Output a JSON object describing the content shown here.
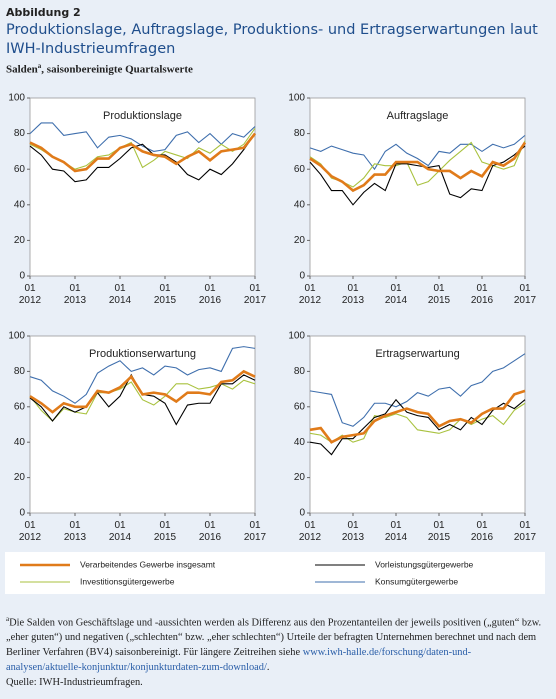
{
  "header": {
    "figure": "Abbildung 2",
    "title": "Produktionslage, Auftragslage, Produktions- und Ertragserwartungen laut IWH-Industrieumfragen",
    "subtitle_parts": [
      "Salden",
      "a",
      ", saisonbereinigte Quartalswerte"
    ]
  },
  "chart_data": [
    {
      "type": "line",
      "title": "Produktionslage",
      "categories": [
        "01 2012",
        null,
        null,
        null,
        "01 2013",
        null,
        null,
        null,
        "01 2014",
        null,
        null,
        null,
        "01 2015",
        null,
        null,
        null,
        "01 2016",
        null,
        null,
        null,
        "01 2017"
      ],
      "ylim": [
        0,
        100
      ],
      "yticks": [
        0,
        20,
        40,
        60,
        80,
        100
      ],
      "series": [
        {
          "name": "Verarbeitendes Gewerbe insgesamt",
          "color": "#e07b1a",
          "values": [
            75,
            72,
            67,
            64,
            59,
            60,
            66,
            66,
            72,
            74,
            70,
            68,
            67,
            63,
            67,
            70,
            65,
            70,
            71,
            72,
            80
          ]
        },
        {
          "name": "Vorleistungsgütergewerbe",
          "color": "#000000",
          "values": [
            73,
            68,
            60,
            59,
            53,
            54,
            61,
            61,
            66,
            72,
            74,
            68,
            68,
            64,
            57,
            54,
            60,
            57,
            63,
            71,
            80
          ]
        },
        {
          "name": "Investitionsgütergewerbe",
          "color": "#a9c23f",
          "values": [
            74,
            71,
            67,
            64,
            60,
            62,
            67,
            68,
            72,
            75,
            61,
            65,
            70,
            68,
            66,
            72,
            69,
            74,
            70,
            74,
            83
          ]
        },
        {
          "name": "Konsumgütergewerbe",
          "color": "#3f6fad",
          "values": [
            80,
            86,
            86,
            79,
            80,
            81,
            72,
            78,
            79,
            77,
            73,
            70,
            71,
            79,
            81,
            75,
            80,
            74,
            80,
            78,
            84
          ]
        }
      ]
    },
    {
      "type": "line",
      "title": "Auftragslage",
      "categories": [
        "01 2012",
        null,
        null,
        null,
        "01 2013",
        null,
        null,
        null,
        "01 2014",
        null,
        null,
        null,
        "01 2015",
        null,
        null,
        null,
        "01 2016",
        null,
        null,
        null,
        "01 2017"
      ],
      "ylim": [
        0,
        100
      ],
      "yticks": [
        0,
        20,
        40,
        60,
        80,
        100
      ],
      "series": [
        {
          "values": [
            66,
            62,
            56,
            53,
            48,
            51,
            57,
            57,
            64,
            64,
            64,
            60,
            59,
            59,
            55,
            59,
            56,
            64,
            62,
            66,
            75
          ]
        },
        {
          "values": [
            64,
            57,
            48,
            48,
            40,
            47,
            52,
            48,
            63,
            63,
            62,
            61,
            62,
            46,
            44,
            49,
            48,
            62,
            64,
            68,
            73
          ]
        },
        {
          "values": [
            67,
            63,
            55,
            53,
            50,
            55,
            63,
            62,
            62,
            64,
            51,
            53,
            59,
            65,
            70,
            75,
            64,
            62,
            60,
            62,
            76
          ]
        },
        {
          "values": [
            72,
            70,
            73,
            71,
            69,
            68,
            60,
            70,
            74,
            69,
            66,
            62,
            70,
            69,
            74,
            74,
            70,
            74,
            72,
            74,
            79
          ]
        }
      ]
    },
    {
      "type": "line",
      "title": "Produktionserwartung",
      "categories": [
        "01 2012",
        null,
        null,
        null,
        "01 2013",
        null,
        null,
        null,
        "01 2014",
        null,
        null,
        null,
        "01 2015",
        null,
        null,
        null,
        "01 2016",
        null,
        null,
        null,
        "01 2017"
      ],
      "ylim": [
        0,
        100
      ],
      "yticks": [
        0,
        20,
        40,
        60,
        80,
        100
      ],
      "series": [
        {
          "values": [
            66,
            62,
            57,
            62,
            60,
            60,
            69,
            68,
            71,
            77,
            67,
            68,
            67,
            63,
            68,
            68,
            67,
            74,
            75,
            80,
            77
          ]
        },
        {
          "values": [
            65,
            60,
            52,
            60,
            57,
            60,
            68,
            60,
            66,
            78,
            67,
            66,
            62,
            50,
            61,
            62,
            62,
            73,
            73,
            78,
            75
          ]
        },
        {
          "values": [
            66,
            58,
            52,
            59,
            57,
            56,
            68,
            68,
            70,
            74,
            64,
            61,
            66,
            73,
            73,
            70,
            71,
            73,
            70,
            75,
            73
          ]
        },
        {
          "values": [
            77,
            75,
            69,
            66,
            62,
            67,
            79,
            83,
            86,
            80,
            82,
            78,
            83,
            82,
            78,
            81,
            82,
            80,
            93,
            94,
            93
          ]
        }
      ]
    },
    {
      "type": "line",
      "title": "Ertragserwartung",
      "categories": [
        "01 2012",
        null,
        null,
        null,
        "01 2013",
        null,
        null,
        null,
        "01 2014",
        null,
        null,
        null,
        "01 2015",
        null,
        null,
        null,
        "01 2016",
        null,
        null,
        null,
        "01 2017"
      ],
      "ylim": [
        0,
        100
      ],
      "yticks": [
        0,
        20,
        40,
        60,
        80,
        100
      ],
      "series": [
        {
          "values": [
            47,
            48,
            40,
            43,
            44,
            45,
            52,
            55,
            57,
            59,
            57,
            56,
            49,
            52,
            53,
            51,
            56,
            59,
            59,
            67,
            69
          ]
        },
        {
          "values": [
            40,
            39,
            33,
            42,
            42,
            48,
            54,
            56,
            64,
            57,
            55,
            54,
            47,
            50,
            47,
            54,
            50,
            58,
            62,
            59,
            64
          ]
        },
        {
          "values": [
            45,
            44,
            40,
            44,
            40,
            42,
            55,
            54,
            56,
            54,
            47,
            46,
            45,
            47,
            53,
            50,
            53,
            55,
            50,
            58,
            62
          ]
        },
        {
          "values": [
            69,
            68,
            67,
            51,
            49,
            54,
            62,
            62,
            60,
            63,
            68,
            66,
            70,
            71,
            66,
            72,
            74,
            80,
            82,
            86,
            90
          ]
        }
      ]
    }
  ],
  "footnote": {
    "marker": "a",
    "text": "Die Salden von Geschäftslage und -aussichten werden als Differenz aus den Prozentanteilen der jeweils positiven („guten“ bzw. „eher guten“) und negativen („schlechten“ bzw. „eher schlechten“) Urteile der befragten Unternehmen berechnet und nach dem Berliner Verfahren (BV4) saisonbereinigt. Für längere Zeitreihen siehe ",
    "link": "www.iwh-halle.de/forschung/daten-und-analysen/aktuelle-konjunktur/konjunkturdaten-zum-download/",
    "end": "."
  },
  "source": "Quelle: IWH-Industrieumfragen."
}
